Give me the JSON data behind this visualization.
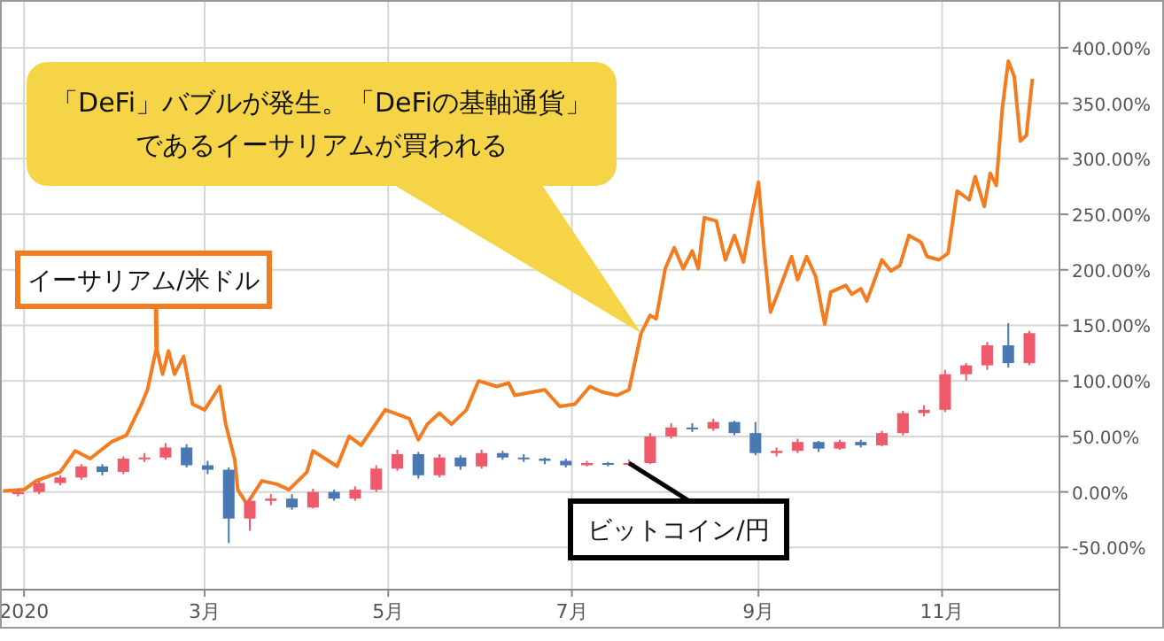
{
  "chart_data": {
    "type": "line",
    "xlim": [
      "2019-12-24",
      "2020-12-10"
    ],
    "ylim": [
      -88,
      443
    ],
    "xticks": [
      {
        "value": "2020-01-01",
        "label": "2020"
      },
      {
        "value": "2020-03-01",
        "label": "3月"
      },
      {
        "value": "2020-05-01",
        "label": "5月"
      },
      {
        "value": "2020-07-01",
        "label": "7月"
      },
      {
        "value": "2020-09-01",
        "label": "9月"
      },
      {
        "value": "2020-11-01",
        "label": "11月"
      }
    ],
    "yticks": [
      {
        "value": -50,
        "label": "-50.00%"
      },
      {
        "value": 0,
        "label": "0.00%"
      },
      {
        "value": 50,
        "label": "50.00%"
      },
      {
        "value": 100,
        "label": "100.00%"
      },
      {
        "value": 150,
        "label": "150.00%"
      },
      {
        "value": 200,
        "label": "200.00%"
      },
      {
        "value": 250,
        "label": "250.00%"
      },
      {
        "value": 300,
        "label": "300.00%"
      },
      {
        "value": 350,
        "label": "350.00%"
      },
      {
        "value": 400,
        "label": "400.00%"
      }
    ],
    "grid": true,
    "series": [
      {
        "name": "イーサリアム/米ドル",
        "type": "line",
        "color": "#f47c20",
        "x": [
          "2019-12-25",
          "2020-01-01",
          "2020-01-05",
          "2020-01-13",
          "2020-01-18",
          "2020-01-23",
          "2020-01-30",
          "2020-02-04",
          "2020-02-09",
          "2020-02-11",
          "2020-02-14",
          "2020-02-16",
          "2020-02-18",
          "2020-02-20",
          "2020-02-23",
          "2020-02-26",
          "2020-03-01",
          "2020-03-06",
          "2020-03-08",
          "2020-03-11",
          "2020-03-12",
          "2020-03-15",
          "2020-03-20",
          "2020-03-25",
          "2020-03-29",
          "2020-04-04",
          "2020-04-06",
          "2020-04-14",
          "2020-04-18",
          "2020-04-22",
          "2020-04-30",
          "2020-05-08",
          "2020-05-11",
          "2020-05-14",
          "2020-05-18",
          "2020-05-22",
          "2020-05-27",
          "2020-05-31",
          "2020-06-06",
          "2020-06-10",
          "2020-06-12",
          "2020-06-22",
          "2020-06-27",
          "2020-07-02",
          "2020-07-07",
          "2020-07-11",
          "2020-07-16",
          "2020-07-20",
          "2020-07-24",
          "2020-07-27",
          "2020-07-29",
          "2020-08-01",
          "2020-08-04",
          "2020-08-07",
          "2020-08-10",
          "2020-08-12",
          "2020-08-14",
          "2020-08-18",
          "2020-08-21",
          "2020-08-24",
          "2020-08-27",
          "2020-08-30",
          "2020-09-01",
          "2020-09-03",
          "2020-09-05",
          "2020-09-08",
          "2020-09-12",
          "2020-09-14",
          "2020-09-17",
          "2020-09-20",
          "2020-09-23",
          "2020-09-25",
          "2020-09-30",
          "2020-10-02",
          "2020-10-05",
          "2020-10-07",
          "2020-10-10",
          "2020-10-12",
          "2020-10-15",
          "2020-10-18",
          "2020-10-21",
          "2020-10-25",
          "2020-10-27",
          "2020-10-31",
          "2020-11-03",
          "2020-11-06",
          "2020-11-10",
          "2020-11-12",
          "2020-11-15",
          "2020-11-17",
          "2020-11-19",
          "2020-11-21",
          "2020-11-23",
          "2020-11-25",
          "2020-11-27",
          "2020-11-29",
          "2020-12-01"
        ],
        "values": [
          1,
          2,
          10,
          18,
          37,
          30,
          45,
          51,
          79,
          92,
          130,
          106,
          127,
          106,
          122,
          79,
          74,
          95,
          61,
          29,
          2,
          -11,
          10,
          7,
          2,
          18,
          37,
          23,
          50,
          42,
          74,
          66,
          47,
          61,
          71,
          61,
          74,
          100,
          95,
          98,
          87,
          92,
          77,
          79,
          95,
          90,
          87,
          92,
          143,
          159,
          156,
          201,
          220,
          201,
          217,
          201,
          247,
          244,
          209,
          231,
          207,
          252,
          279,
          215,
          162,
          183,
          212,
          191,
          212,
          194,
          151,
          180,
          186,
          178,
          183,
          172,
          194,
          209,
          199,
          204,
          231,
          225,
          212,
          209,
          215,
          271,
          263,
          284,
          257,
          287,
          276,
          345,
          388,
          374,
          316,
          321,
          372
        ]
      },
      {
        "name": "ビットコイン/円",
        "type": "candlestick",
        "x": [
          "2019-12-30",
          "2020-01-06",
          "2020-01-13",
          "2020-01-20",
          "2020-01-27",
          "2020-02-03",
          "2020-02-10",
          "2020-02-17",
          "2020-02-24",
          "2020-03-02",
          "2020-03-09",
          "2020-03-16",
          "2020-03-23",
          "2020-03-30",
          "2020-04-06",
          "2020-04-13",
          "2020-04-20",
          "2020-04-27",
          "2020-05-04",
          "2020-05-11",
          "2020-05-18",
          "2020-05-25",
          "2020-06-01",
          "2020-06-08",
          "2020-06-15",
          "2020-06-22",
          "2020-06-29",
          "2020-07-06",
          "2020-07-13",
          "2020-07-20",
          "2020-07-27",
          "2020-08-03",
          "2020-08-10",
          "2020-08-17",
          "2020-08-24",
          "2020-08-31",
          "2020-09-07",
          "2020-09-14",
          "2020-09-21",
          "2020-09-28",
          "2020-10-05",
          "2020-10-12",
          "2020-10-19",
          "2020-10-26",
          "2020-11-02",
          "2020-11-09",
          "2020-11-16",
          "2020-11-23",
          "2020-11-30"
        ],
        "ohlc": [
          [
            -2,
            3,
            -4,
            0
          ],
          [
            0,
            10,
            -2,
            8
          ],
          [
            8,
            15,
            6,
            13
          ],
          [
            13,
            25,
            11,
            23
          ],
          [
            23,
            25,
            15,
            18
          ],
          [
            18,
            32,
            16,
            30
          ],
          [
            30,
            35,
            27,
            31
          ],
          [
            31,
            44,
            29,
            40
          ],
          [
            40,
            43,
            22,
            24
          ],
          [
            24,
            28,
            16,
            20
          ],
          [
            20,
            22,
            -46,
            -24
          ],
          [
            -24,
            -5,
            -35,
            -8
          ],
          [
            -8,
            -2,
            -12,
            -6
          ],
          [
            -6,
            -2,
            -16,
            -14
          ],
          [
            -14,
            3,
            -15,
            0
          ],
          [
            0,
            2,
            -8,
            -6
          ],
          [
            -6,
            5,
            -8,
            2
          ],
          [
            2,
            24,
            0,
            21
          ],
          [
            21,
            38,
            19,
            34
          ],
          [
            34,
            36,
            12,
            15
          ],
          [
            15,
            34,
            13,
            31
          ],
          [
            31,
            33,
            20,
            23
          ],
          [
            23,
            38,
            21,
            35
          ],
          [
            35,
            37,
            29,
            31
          ],
          [
            31,
            34,
            27,
            30
          ],
          [
            30,
            31,
            25,
            28
          ],
          [
            28,
            30,
            22,
            24
          ],
          [
            24,
            28,
            23,
            26
          ],
          [
            26,
            27,
            23,
            25
          ],
          [
            25,
            29,
            24,
            26
          ],
          [
            26,
            53,
            25,
            50
          ],
          [
            50,
            62,
            48,
            58
          ],
          [
            58,
            62,
            54,
            57
          ],
          [
            57,
            66,
            55,
            63
          ],
          [
            63,
            64,
            51,
            53
          ],
          [
            53,
            63,
            33,
            35
          ],
          [
            35,
            40,
            32,
            37
          ],
          [
            37,
            48,
            35,
            45
          ],
          [
            45,
            46,
            36,
            39
          ],
          [
            39,
            47,
            38,
            45
          ],
          [
            45,
            47,
            40,
            42
          ],
          [
            42,
            55,
            41,
            53
          ],
          [
            53,
            73,
            51,
            71
          ],
          [
            71,
            78,
            68,
            74
          ],
          [
            74,
            110,
            72,
            106
          ],
          [
            106,
            116,
            100,
            114
          ],
          [
            114,
            135,
            110,
            132
          ],
          [
            132,
            152,
            112,
            116
          ],
          [
            116,
            145,
            114,
            143
          ]
        ],
        "colors": [
          "#ef5a6a",
          "#ef5a6a",
          "#ef5a6a",
          "#ef5a6a",
          "#4a78b0",
          "#ef5a6a",
          "#ef5a6a",
          "#ef5a6a",
          "#4a78b0",
          "#4a78b0",
          "#4a78b0",
          "#ef5a6a",
          "#ef5a6a",
          "#4a78b0",
          "#ef5a6a",
          "#4a78b0",
          "#ef5a6a",
          "#ef5a6a",
          "#ef5a6a",
          "#4a78b0",
          "#ef5a6a",
          "#4a78b0",
          "#ef5a6a",
          "#4a78b0",
          "#4a78b0",
          "#4a78b0",
          "#4a78b0",
          "#ef5a6a",
          "#4a78b0",
          "#ef5a6a",
          "#ef5a6a",
          "#ef5a6a",
          "#4a78b0",
          "#ef5a6a",
          "#4a78b0",
          "#4a78b0",
          "#ef5a6a",
          "#ef5a6a",
          "#4a78b0",
          "#ef5a6a",
          "#4a78b0",
          "#ef5a6a",
          "#ef5a6a",
          "#ef5a6a",
          "#ef5a6a",
          "#ef5a6a",
          "#ef5a6a",
          "#4a78b0",
          "#ef5a6a"
        ]
      }
    ],
    "annotations": [
      "「DeFi」バブルが発生。「DeFiの基軸通貨」であるイーサリアムが買われる"
    ]
  }
}
